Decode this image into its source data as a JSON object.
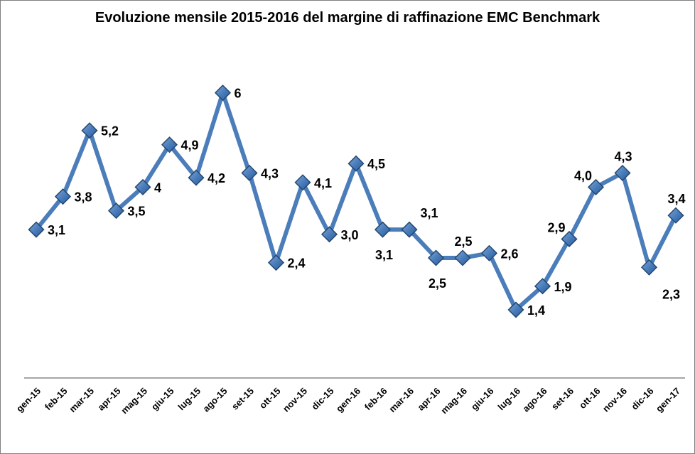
{
  "window": {
    "background": "#ffffff",
    "border_color": "#7f7f7f"
  },
  "chart_data": {
    "type": "line",
    "title": "Evoluzione mensile 2015-2016 del margine di raffinazione EMC Benchmark",
    "categories": [
      "gen-15",
      "feb-15",
      "mar-15",
      "apr-15",
      "mag-15",
      "giu-15",
      "lug-15",
      "ago-15",
      "set-15",
      "ott-15",
      "nov-15",
      "dic-15",
      "gen-16",
      "feb-16",
      "mar-16",
      "apr-16",
      "mag-16",
      "giu-16",
      "lug-16",
      "ago-16",
      "set-16",
      "ott-16",
      "nov-16",
      "dic-16",
      "gen-17"
    ],
    "values": [
      3.1,
      3.8,
      5.2,
      3.5,
      4,
      4.9,
      4.2,
      6,
      4.3,
      2.4,
      4.1,
      3.0,
      4.5,
      3.1,
      3.1,
      2.5,
      2.5,
      2.6,
      1.4,
      1.9,
      2.9,
      4.0,
      4.3,
      2.3,
      3.4
    ],
    "point_labels": [
      "3,1",
      "3,8",
      "5,2",
      "3,5",
      "4",
      "4,9",
      "4,2",
      "6",
      "4,3",
      "2,4",
      "4,1",
      "3,0",
      "4,5",
      "3,1",
      "3,1",
      "2,5",
      "2,5",
      "2,6",
      "1,4",
      "1,9",
      "2,9",
      "4,0",
      "4,3",
      "2,3",
      "3,4"
    ],
    "label_positions": [
      "right",
      "right",
      "right",
      "right",
      "right",
      "right",
      "right",
      "right",
      "right",
      "right",
      "right",
      "right",
      "right",
      "below",
      "above-right",
      "below",
      "above",
      "right",
      "right",
      "right",
      "above-left",
      "above-left",
      "above",
      "below-right",
      "above"
    ],
    "xlabel": "",
    "ylabel": "",
    "ylim": [
      0,
      7
    ],
    "grid": "off",
    "legend": "none",
    "x_tick_rotation": -45,
    "marker_shape": "diamond",
    "colors": {
      "line": "#4A7DBA",
      "marker_light": "#7CA6D6",
      "marker_mid": "#4679B8",
      "marker_dark": "#2B5C99",
      "marker_border": "#25486F",
      "axis_line": "#898989",
      "label_text": "#000000",
      "tick_text": "#000000",
      "title_text": "#000000"
    }
  }
}
